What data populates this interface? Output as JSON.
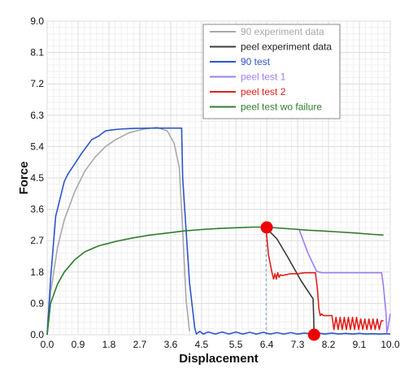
{
  "chart_data": {
    "type": "line",
    "xlabel": "Displacement",
    "ylabel": "Force",
    "xlim": [
      0,
      10
    ],
    "ylim": [
      0,
      9
    ],
    "x_ticks": [
      "0.0",
      "0.9",
      "1.8",
      "2.7",
      "3.6",
      "4.5",
      "5.5",
      "6.4",
      "7.3",
      "8.2",
      "9.1",
      "10.0"
    ],
    "x_tick_values": [
      0,
      0.9,
      1.8,
      2.7,
      3.6,
      4.5,
      5.5,
      6.4,
      7.3,
      8.2,
      9.1,
      10.0
    ],
    "y_ticks": [
      "0.0",
      "0.9",
      "1.8",
      "2.7",
      "3.6",
      "4.5",
      "5.4",
      "6.3",
      "7.2",
      "8.1",
      "9.0"
    ],
    "y_tick_values": [
      0,
      0.9,
      1.8,
      2.7,
      3.6,
      4.5,
      5.4,
      6.3,
      7.2,
      8.1,
      9.0
    ],
    "grid": true,
    "legend_position": "top-right",
    "series": [
      {
        "name": "90 experiment data",
        "color": "#a8a8a8",
        "x": [
          0,
          0.1,
          0.3,
          0.5,
          0.8,
          1.1,
          1.4,
          1.7,
          2.0,
          2.4,
          2.8,
          3.2,
          3.5,
          3.7,
          3.85,
          3.95,
          4.05,
          4.15
        ],
        "y": [
          0,
          1.2,
          2.5,
          3.3,
          4.1,
          4.7,
          5.1,
          5.4,
          5.6,
          5.8,
          5.9,
          5.95,
          5.85,
          5.5,
          4.8,
          3.0,
          1.0,
          0.1
        ]
      },
      {
        "name": "peel experiment data",
        "color": "#3a3a3a",
        "x": [
          6.38,
          6.7,
          7.0,
          7.4,
          7.75,
          7.77,
          7.78
        ],
        "y": [
          3.07,
          2.75,
          2.25,
          1.55,
          1.03,
          0.45,
          0.0
        ]
      },
      {
        "name": "90 test",
        "color": "#2b56c8",
        "x": [
          0,
          0.1,
          0.25,
          0.5,
          0.6,
          0.8,
          1.0,
          1.3,
          1.5,
          1.7,
          1.9,
          2.1,
          2.5,
          3.0,
          3.5,
          3.8,
          3.92,
          3.95,
          4.15,
          4.3,
          4.35,
          4.45,
          4.55,
          4.7,
          4.9,
          5.1,
          5.3,
          5.5,
          5.7,
          5.9,
          6.1,
          6.3,
          6.5,
          6.7,
          6.9,
          7.1,
          7.3,
          7.5,
          7.7,
          7.9,
          8.1,
          8.3,
          8.5,
          8.7,
          8.9,
          9.1,
          9.3,
          9.5,
          9.7,
          9.9,
          10.0
        ],
        "y": [
          0,
          1.6,
          3.4,
          4.4,
          4.6,
          4.9,
          5.2,
          5.6,
          5.7,
          5.85,
          5.88,
          5.9,
          5.92,
          5.93,
          5.93,
          5.93,
          5.93,
          4.5,
          1.5,
          0.2,
          0.02,
          0.1,
          0.02,
          0.08,
          0.02,
          0.08,
          0.02,
          0.08,
          0.02,
          0.07,
          0.02,
          0.07,
          0.02,
          0.06,
          0.02,
          0.06,
          0.02,
          0.05,
          0.02,
          0.05,
          0.02,
          0.05,
          0.02,
          0.04,
          0.02,
          0.04,
          0.02,
          0.03,
          0.02,
          0.03,
          0.02
        ]
      },
      {
        "name": "peel test 1",
        "color": "#9b7ff0",
        "x": [
          7.35,
          7.6,
          7.85,
          8.0,
          8.3,
          8.8,
          9.3,
          9.75,
          9.8,
          9.88,
          9.9,
          9.94,
          10.0
        ],
        "y": [
          3.0,
          2.35,
          1.82,
          1.78,
          1.78,
          1.78,
          1.78,
          1.78,
          1.4,
          0.6,
          0.05,
          0.25,
          0.6
        ]
      },
      {
        "name": "peel test 2",
        "color": "#e0201b",
        "x": [
          6.38,
          6.45,
          6.55,
          6.6,
          6.64,
          6.68,
          6.72,
          6.76,
          6.8,
          6.85,
          6.95,
          7.1,
          7.3,
          7.5,
          7.7,
          7.82,
          7.88,
          7.92,
          7.96,
          8.0,
          8.05,
          8.15,
          8.3,
          8.36,
          8.42,
          8.48,
          8.54,
          8.6,
          8.66,
          8.72,
          8.78,
          8.84,
          8.9,
          8.96,
          9.02,
          9.08,
          9.14,
          9.2,
          9.26,
          9.32,
          9.38,
          9.44,
          9.5,
          9.56,
          9.62,
          9.68,
          9.74,
          9.8
        ],
        "y": [
          3.07,
          2.3,
          1.8,
          1.6,
          1.75,
          1.6,
          1.78,
          1.65,
          1.72,
          1.7,
          1.72,
          1.75,
          1.75,
          1.78,
          1.78,
          1.78,
          1.3,
          0.75,
          0.55,
          0.6,
          0.55,
          0.55,
          0.55,
          0.15,
          0.5,
          0.15,
          0.5,
          0.15,
          0.5,
          0.15,
          0.5,
          0.15,
          0.5,
          0.15,
          0.5,
          0.15,
          0.45,
          0.15,
          0.45,
          0.15,
          0.45,
          0.15,
          0.45,
          0.15,
          0.45,
          0.15,
          0.4,
          0.4
        ]
      },
      {
        "name": "peel test wo failure",
        "color": "#2e7d2e",
        "x": [
          0,
          0.1,
          0.3,
          0.5,
          0.8,
          1.1,
          1.5,
          2.0,
          2.5,
          3.0,
          3.5,
          4.0,
          4.5,
          5.0,
          5.5,
          6.0,
          6.4,
          6.8,
          7.2,
          7.6,
          8.0,
          8.5,
          9.0,
          9.5,
          9.8
        ],
        "y": [
          0,
          0.9,
          1.45,
          1.8,
          2.15,
          2.38,
          2.55,
          2.68,
          2.78,
          2.86,
          2.92,
          2.98,
          3.02,
          3.05,
          3.07,
          3.09,
          3.09,
          3.06,
          3.03,
          3.0,
          2.98,
          2.95,
          2.92,
          2.88,
          2.86
        ]
      }
    ],
    "markers": [
      {
        "x": 6.4,
        "y": 3.08,
        "color": "#ee0000"
      },
      {
        "x": 7.78,
        "y": 0.0,
        "color": "#ee0000"
      }
    ],
    "reference_line": {
      "x": 6.38,
      "y_from": 0,
      "y_to": 3.08,
      "color": "#6f9fe8",
      "style": "dashed"
    }
  }
}
